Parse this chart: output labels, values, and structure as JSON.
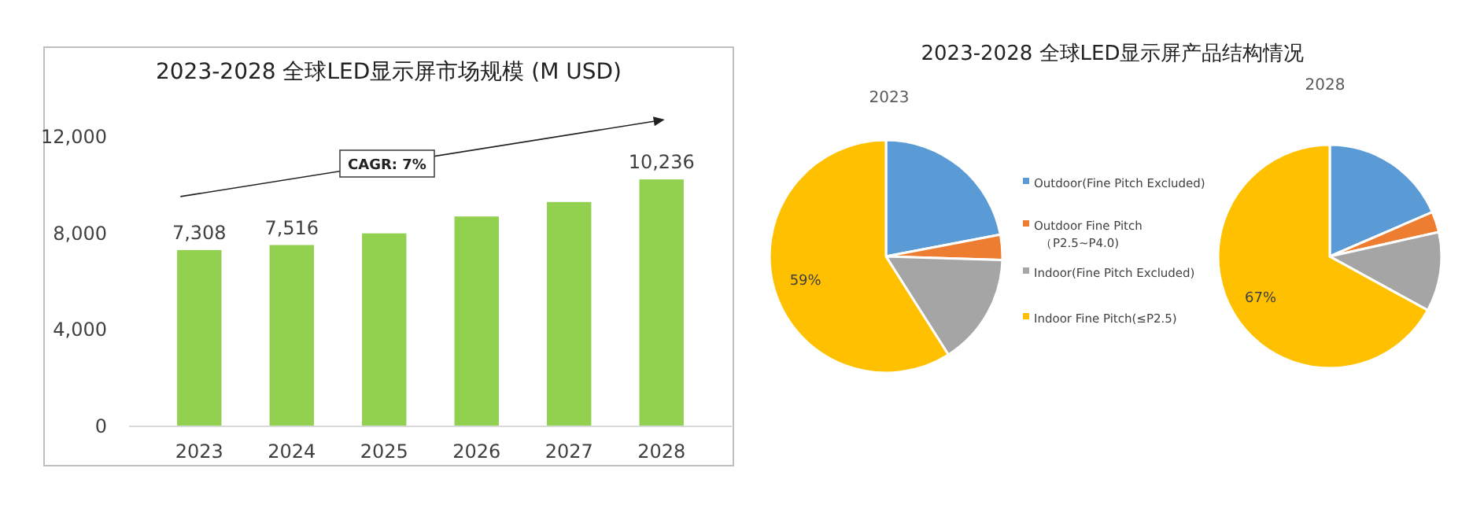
{
  "chart_data": [
    {
      "type": "bar",
      "title": "2023-2028 全球LED显示屏市场规模 (M USD)",
      "categories": [
        "2023",
        "2024",
        "2025",
        "2026",
        "2027",
        "2028"
      ],
      "values": [
        7308,
        7516,
        8000,
        8700,
        9300,
        10236
      ],
      "color": "#92d050",
      "value_labels": [
        "7,308",
        "7,516",
        null,
        null,
        null,
        "10,236"
      ],
      "ylim": [
        0,
        12000
      ],
      "yticks": [
        0,
        {
          "value": 4000,
          "label": "4,000"
        },
        {
          "value": 8000,
          "label": "8,000"
        },
        {
          "value": 12000,
          "label": "12,000"
        }
      ],
      "grid": false,
      "annotations": [
        "CAGR: 7%"
      ]
    },
    {
      "type": "pie",
      "title": "2023-2028 全球LED显示屏产品结构情况",
      "subtitle": "2023",
      "categories": [
        "Outdoor(Fine Pitch Excluded)",
        "Outdoor Fine Pitch\n（P2.5~P4.0)",
        "Indoor(Fine Pitch Excluded)",
        "Indoor Fine Pitch(≤P2.5)"
      ],
      "values": [
        22,
        3.5,
        15.5,
        59
      ],
      "colors": [
        "#5b9bd5",
        "#ed7d31",
        "#a5a5a5",
        "#ffc000"
      ],
      "value_labels": [
        null,
        null,
        null,
        "59%"
      ],
      "legend": "right"
    },
    {
      "type": "pie",
      "title": "2028",
      "categories": [
        null,
        null,
        null,
        null
      ],
      "values": [
        18.5,
        3,
        11.5,
        67
      ],
      "colors": [
        "#5b9bd5",
        "#ed7d31",
        "#a5a5a5",
        "#ffc000"
      ],
      "value_labels": [
        null,
        null,
        null,
        "67%"
      ],
      "legend": false
    }
  ]
}
